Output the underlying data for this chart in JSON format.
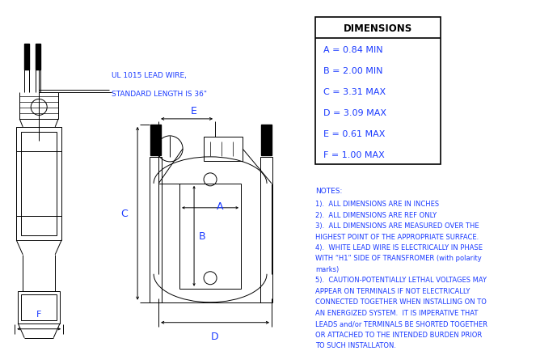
{
  "bg_color": "#ffffff",
  "line_color": "#000000",
  "text_color": "#1a3aff",
  "dim_title": "DIMENSIONS",
  "dim_rows": [
    "A = 0.84 MIN",
    "B = 2.00 MIN",
    "C = 3.31 MAX",
    "D = 3.09 MAX",
    "E = 0.61 MAX",
    "F = 1.00 MAX"
  ],
  "notes_title": "NOTES:",
  "notes": [
    "1).  ALL DIMENSIONS ARE IN INCHES",
    "2).  ALL DIMENSIONS ARE REF ONLY",
    "3).  ALL DIMENSIONS ARE MEASURED OVER THE",
    "HIGHEST POINT OF THE APPROPRIATE SURFACE.",
    "4).  WHITE LEAD WIRE IS ELECTRICALLY IN PHASE",
    "WITH “H1” SIDE OF TRANSFROMER (with polarity",
    "marks)",
    "5).  CAUTION-POTENTIALLY LETHAL VOLTAGES MAY",
    "APPEAR ON TERMINALS IF NOT ELECTRICALLY",
    "CONNECTED TOGETHER WHEN INSTALLING ON TO",
    "AN ENERGIZED SYSTEM.  IT IS IMPERATIVE THAT",
    "LEADS and/or TERMINALS BE SHORTED TOGETHER",
    "OR ATTACHED TO THE INTENDED BURDEN PRIOR",
    "TO SUCH INSTALLATON."
  ],
  "lead_wire_label1": "UL 1015 LEAD WIRE,",
  "lead_wire_label2": "STANDARD LENGTH IS 36\"",
  "label_E": "E",
  "label_A": "A",
  "label_B": "B",
  "label_C": "C",
  "label_D": "D",
  "label_F": "F",
  "figsize": [
    6.89,
    4.35
  ],
  "dpi": 100
}
